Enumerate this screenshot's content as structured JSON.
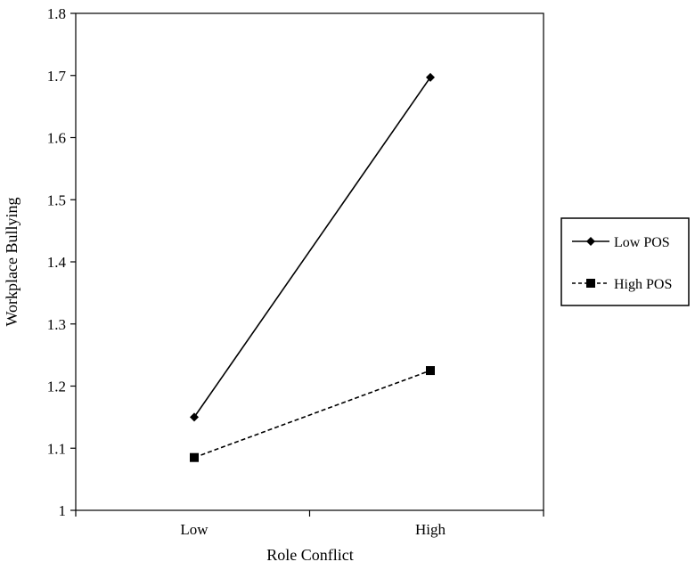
{
  "chart_data": {
    "type": "line",
    "title": "",
    "xlabel": "Role Conflict",
    "ylabel": "Workplace Bullying",
    "categories": [
      "Low",
      "High"
    ],
    "ylim": [
      1,
      1.8
    ],
    "yticks": [
      "1",
      "1.1",
      "1.2",
      "1.3",
      "1.4",
      "1.5",
      "1.6",
      "1.7",
      "1.8"
    ],
    "grid": false,
    "legend_position": "right",
    "series": [
      {
        "name": "Low POS",
        "values": [
          1.15,
          1.697
        ],
        "marker": "diamond",
        "line_style": "solid",
        "color": "#000000"
      },
      {
        "name": "High POS",
        "values": [
          1.085,
          1.225
        ],
        "marker": "square",
        "line_style": "dashed",
        "color": "#000000"
      }
    ]
  }
}
